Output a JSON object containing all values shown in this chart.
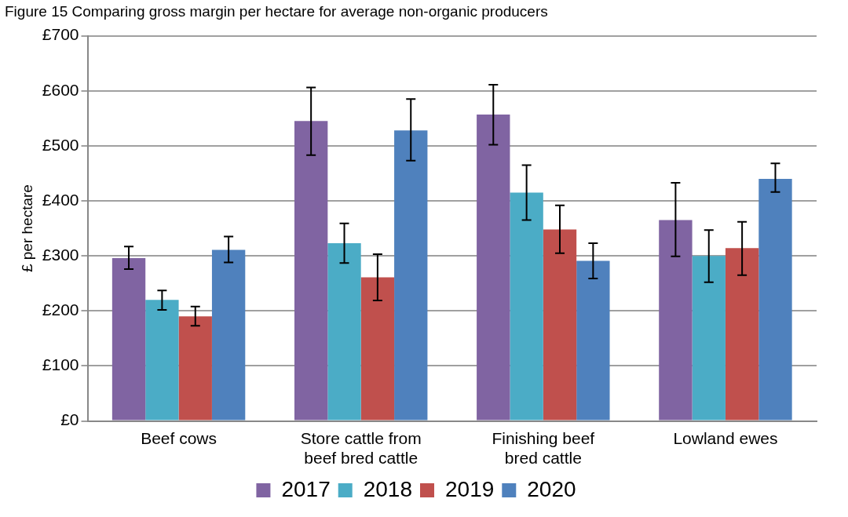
{
  "chart_data": {
    "type": "bar",
    "title": "Figure 15 Comparing gross margin per hectare for average non-organic producers",
    "ylabel": "£ per hectare",
    "categories": [
      "Beef cows",
      "Store cattle from beef bred cattle",
      "Finishing beef bred cattle",
      "Lowland ewes"
    ],
    "series": [
      {
        "name": "2017",
        "color": "#8064a2",
        "values": [
          296,
          545,
          557,
          365
        ],
        "errors": [
          [
            276,
            317
          ],
          [
            483,
            606
          ],
          [
            502,
            611
          ],
          [
            299,
            433
          ]
        ]
      },
      {
        "name": "2018",
        "color": "#4bacc6",
        "values": [
          220,
          323,
          415,
          300
        ],
        "errors": [
          [
            202,
            237
          ],
          [
            287,
            359
          ],
          [
            365,
            465
          ],
          [
            252,
            347
          ]
        ]
      },
      {
        "name": "2019",
        "color": "#c0504d",
        "values": [
          190,
          261,
          348,
          314
        ],
        "errors": [
          [
            173,
            208
          ],
          [
            219,
            303
          ],
          [
            305,
            392
          ],
          [
            265,
            362
          ]
        ]
      },
      {
        "name": "2020",
        "color": "#4f81bd",
        "values": [
          311,
          528,
          291,
          440
        ],
        "errors": [
          [
            288,
            335
          ],
          [
            473,
            585
          ],
          [
            259,
            323
          ],
          [
            416,
            468
          ]
        ]
      }
    ],
    "ylim": [
      0,
      700
    ],
    "yticks": [
      {
        "value": 0,
        "label": "£0"
      },
      {
        "value": 100,
        "label": "£100"
      },
      {
        "value": 200,
        "label": "£200"
      },
      {
        "value": 300,
        "label": "£300"
      },
      {
        "value": 400,
        "label": "£400"
      },
      {
        "value": 500,
        "label": "£500"
      },
      {
        "value": 600,
        "label": "£600"
      },
      {
        "value": 700,
        "label": "£700"
      }
    ],
    "grid": "y",
    "legend": "bottom"
  }
}
